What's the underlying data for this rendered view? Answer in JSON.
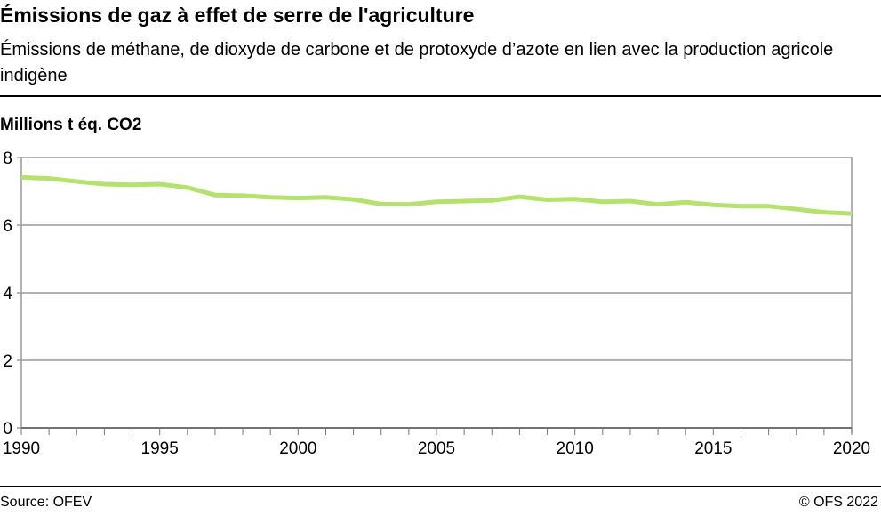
{
  "title": "Émissions de gaz à effet de serre de l'agriculture",
  "subtitle": "Émissions de méthane, de dioxyde de carbone et de protoxyde d’azote en lien avec la production agricole indigène",
  "source": "Source: OFEV",
  "copyright": "© OFS 2022",
  "chart_data": {
    "type": "line",
    "ylabel": "Millions t éq. CO2",
    "xlim": [
      1990,
      2020
    ],
    "ylim": [
      0,
      8
    ],
    "yticks": [
      "0",
      "2",
      "4",
      "6",
      "8"
    ],
    "xticks": [
      "1990",
      "1995",
      "2000",
      "2005",
      "2010",
      "2015",
      "2020"
    ],
    "grid": true,
    "line_color": "#b5e16e",
    "x": [
      1990,
      1991,
      1992,
      1993,
      1994,
      1995,
      1996,
      1997,
      1998,
      1999,
      2000,
      2001,
      2002,
      2003,
      2004,
      2005,
      2006,
      2007,
      2008,
      2009,
      2010,
      2011,
      2012,
      2013,
      2014,
      2015,
      2016,
      2017,
      2018,
      2019,
      2020
    ],
    "series": [
      {
        "values": [
          7.41,
          7.38,
          7.29,
          7.21,
          7.19,
          7.21,
          7.11,
          6.89,
          6.87,
          6.82,
          6.8,
          6.82,
          6.76,
          6.62,
          6.61,
          6.69,
          6.71,
          6.73,
          6.84,
          6.75,
          6.77,
          6.69,
          6.71,
          6.61,
          6.68,
          6.6,
          6.56,
          6.56,
          6.47,
          6.38,
          6.34
        ]
      }
    ]
  }
}
